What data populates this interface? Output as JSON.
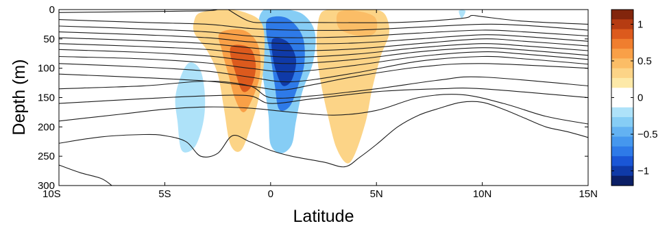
{
  "chart_data": {
    "type": "heatmap",
    "title": "",
    "xlabel": "Latitude",
    "ylabel": "Depth (m)",
    "xlim": [
      -10,
      15
    ],
    "ylim": [
      300,
      0
    ],
    "x_ticks": [
      {
        "value": -10,
        "label": "10S"
      },
      {
        "value": -5,
        "label": "5S"
      },
      {
        "value": 0,
        "label": "0"
      },
      {
        "value": 5,
        "label": "5N"
      },
      {
        "value": 10,
        "label": "10N"
      },
      {
        "value": 15,
        "label": "15N"
      }
    ],
    "y_ticks": [
      {
        "value": 0,
        "label": "0"
      },
      {
        "value": 50,
        "label": "50"
      },
      {
        "value": 100,
        "label": "100"
      },
      {
        "value": 150,
        "label": "150"
      },
      {
        "value": 200,
        "label": "200"
      },
      {
        "value": 250,
        "label": "250"
      },
      {
        "value": 300,
        "label": "300"
      }
    ],
    "colorbar": {
      "range": [
        -1.2,
        1.2
      ],
      "ticks": [
        {
          "value": 1,
          "label": "1"
        },
        {
          "value": 0.5,
          "label": "0.5"
        },
        {
          "value": 0,
          "label": "0"
        },
        {
          "value": -0.5,
          "label": "−0.5"
        },
        {
          "value": -1,
          "label": "−1"
        }
      ],
      "colors": [
        "#0b1f66",
        "#0f3aa8",
        "#1a56d6",
        "#2e7ae8",
        "#4597ee",
        "#63b2f2",
        "#86cdf5",
        "#aee2f9",
        "#ffffff",
        "#ffffff",
        "#fde9a8",
        "#fcd487",
        "#fbbd66",
        "#f9a047",
        "#f07e2e",
        "#dc5a1d",
        "#b63c12",
        "#82250c"
      ]
    },
    "anomaly_blobs": [
      {
        "name": "blob-north-warm",
        "value": 0.3,
        "points": [
          [
            3.0,
            0
          ],
          [
            3.6,
            0
          ],
          [
            4.8,
            0
          ],
          [
            5.4,
            8
          ],
          [
            5.6,
            40
          ],
          [
            5.2,
            80
          ],
          [
            4.8,
            135
          ],
          [
            4.5,
            190
          ],
          [
            4.0,
            245
          ],
          [
            3.6,
            262
          ],
          [
            3.1,
            235
          ],
          [
            2.7,
            180
          ],
          [
            2.4,
            130
          ],
          [
            2.2,
            80
          ],
          [
            2.2,
            35
          ],
          [
            2.4,
            5
          ]
        ]
      },
      {
        "name": "blob-north-warm-core",
        "value": 0.45,
        "points": [
          [
            3.2,
            5
          ],
          [
            4.0,
            2
          ],
          [
            4.9,
            12
          ],
          [
            5.0,
            35
          ],
          [
            4.6,
            45
          ],
          [
            3.8,
            42
          ],
          [
            3.2,
            30
          ]
        ]
      },
      {
        "name": "blob-equator-cool",
        "value": -0.4,
        "points": [
          [
            -0.3,
            0
          ],
          [
            0.8,
            0
          ],
          [
            1.6,
            10
          ],
          [
            2.1,
            40
          ],
          [
            2.0,
            90
          ],
          [
            1.5,
            140
          ],
          [
            1.2,
            190
          ],
          [
            1.0,
            230
          ],
          [
            0.5,
            245
          ],
          [
            0.0,
            230
          ],
          [
            -0.1,
            180
          ],
          [
            -0.3,
            130
          ],
          [
            -0.5,
            80
          ],
          [
            -0.6,
            30
          ]
        ]
      },
      {
        "name": "blob-equator-cool-mid",
        "value": -0.7,
        "points": [
          [
            -0.1,
            15
          ],
          [
            0.8,
            15
          ],
          [
            1.5,
            45
          ],
          [
            1.6,
            90
          ],
          [
            1.3,
            130
          ],
          [
            0.9,
            165
          ],
          [
            0.4,
            170
          ],
          [
            0.2,
            130
          ],
          [
            0.0,
            80
          ],
          [
            -0.2,
            40
          ]
        ]
      },
      {
        "name": "blob-equator-cool-core",
        "value": -1.0,
        "points": [
          [
            0.1,
            50
          ],
          [
            0.8,
            55
          ],
          [
            1.2,
            85
          ],
          [
            1.0,
            120
          ],
          [
            0.6,
            130
          ],
          [
            0.3,
            110
          ],
          [
            0.1,
            80
          ]
        ]
      },
      {
        "name": "blob-south-warm",
        "value": 0.3,
        "points": [
          [
            -3.3,
            5
          ],
          [
            -2.2,
            0
          ],
          [
            -1.2,
            5
          ],
          [
            -0.4,
            25
          ],
          [
            -0.3,
            80
          ],
          [
            -0.5,
            140
          ],
          [
            -0.9,
            195
          ],
          [
            -1.4,
            240
          ],
          [
            -1.9,
            230
          ],
          [
            -2.2,
            170
          ],
          [
            -2.5,
            110
          ],
          [
            -3.0,
            70
          ],
          [
            -3.6,
            40
          ],
          [
            -3.6,
            18
          ]
        ]
      },
      {
        "name": "blob-south-warm-mid",
        "value": 0.6,
        "points": [
          [
            -2.4,
            40
          ],
          [
            -1.3,
            35
          ],
          [
            -0.6,
            60
          ],
          [
            -0.5,
            110
          ],
          [
            -0.9,
            155
          ],
          [
            -1.3,
            175
          ],
          [
            -1.7,
            150
          ],
          [
            -2.0,
            110
          ],
          [
            -2.3,
            70
          ]
        ]
      },
      {
        "name": "blob-south-warm-core",
        "value": 0.85,
        "points": [
          [
            -1.9,
            65
          ],
          [
            -1.0,
            65
          ],
          [
            -0.7,
            95
          ],
          [
            -0.9,
            130
          ],
          [
            -1.3,
            140
          ],
          [
            -1.6,
            115
          ]
        ]
      },
      {
        "name": "blob-south-cool",
        "value": -0.25,
        "points": [
          [
            -4.2,
            110
          ],
          [
            -3.8,
            90
          ],
          [
            -3.3,
            105
          ],
          [
            -3.1,
            150
          ],
          [
            -3.2,
            195
          ],
          [
            -3.6,
            235
          ],
          [
            -4.2,
            240
          ],
          [
            -4.4,
            190
          ],
          [
            -4.5,
            150
          ]
        ]
      },
      {
        "name": "blob-north-cool-speck",
        "value": -0.2,
        "points": [
          [
            8.9,
            2
          ],
          [
            9.2,
            2
          ],
          [
            9.1,
            12
          ],
          [
            9.0,
            14
          ]
        ]
      }
    ],
    "contours": [
      {
        "name": "contour-1",
        "points": [
          [
            -10,
            5
          ],
          [
            -5,
            3
          ],
          [
            -3,
            2
          ],
          [
            -2.5,
            0
          ]
        ]
      },
      {
        "name": "contour-2",
        "points": [
          [
            -2,
            0
          ],
          [
            -1,
            20
          ],
          [
            0,
            22
          ],
          [
            2,
            22
          ],
          [
            6,
            22
          ],
          [
            9,
            15
          ],
          [
            9.5,
            10
          ],
          [
            10,
            12
          ],
          [
            12,
            20
          ],
          [
            15,
            25
          ]
        ]
      },
      {
        "name": "contour-3",
        "points": [
          [
            -10,
            17
          ],
          [
            -6,
            22
          ],
          [
            -3,
            25
          ],
          [
            -1,
            32
          ],
          [
            1,
            35
          ],
          [
            4,
            35
          ],
          [
            7,
            30
          ],
          [
            10,
            25
          ],
          [
            12,
            27
          ],
          [
            15,
            35
          ]
        ]
      },
      {
        "name": "contour-4",
        "points": [
          [
            -10,
            28
          ],
          [
            -6,
            33
          ],
          [
            -3,
            38
          ],
          [
            -1,
            45
          ],
          [
            1,
            48
          ],
          [
            4,
            46
          ],
          [
            7,
            40
          ],
          [
            10,
            35
          ],
          [
            12,
            38
          ],
          [
            15,
            45
          ]
        ]
      },
      {
        "name": "contour-5",
        "points": [
          [
            -10,
            38
          ],
          [
            -6,
            43
          ],
          [
            -3,
            48
          ],
          [
            -1,
            55
          ],
          [
            1,
            58
          ],
          [
            4,
            57
          ],
          [
            7,
            50
          ],
          [
            10,
            43
          ],
          [
            12,
            46
          ],
          [
            15,
            54
          ]
        ]
      },
      {
        "name": "contour-6",
        "points": [
          [
            -10,
            48
          ],
          [
            -6,
            53
          ],
          [
            -3,
            58
          ],
          [
            -1,
            65
          ],
          [
            1,
            70
          ],
          [
            4,
            67
          ],
          [
            7,
            58
          ],
          [
            10,
            50
          ],
          [
            12,
            54
          ],
          [
            15,
            62
          ]
        ]
      },
      {
        "name": "contour-7",
        "points": [
          [
            -10,
            58
          ],
          [
            -6,
            63
          ],
          [
            -3,
            68
          ],
          [
            -1,
            76
          ],
          [
            1,
            81
          ],
          [
            4,
            76
          ],
          [
            7,
            65
          ],
          [
            10,
            58
          ],
          [
            12,
            62
          ],
          [
            15,
            70
          ]
        ]
      },
      {
        "name": "contour-8",
        "points": [
          [
            -10,
            68
          ],
          [
            -6,
            73
          ],
          [
            -3,
            79
          ],
          [
            -1,
            87
          ],
          [
            1,
            92
          ],
          [
            4,
            85
          ],
          [
            7,
            72
          ],
          [
            10,
            65
          ],
          [
            12,
            69
          ],
          [
            15,
            78
          ]
        ]
      },
      {
        "name": "contour-9",
        "points": [
          [
            -10,
            80
          ],
          [
            -6,
            84
          ],
          [
            -3,
            91
          ],
          [
            -1,
            100
          ],
          [
            1,
            106
          ],
          [
            4,
            95
          ],
          [
            7,
            80
          ],
          [
            10,
            72
          ],
          [
            12,
            76
          ],
          [
            15,
            85
          ]
        ]
      },
      {
        "name": "contour-10",
        "points": [
          [
            -10,
            92
          ],
          [
            -6,
            98
          ],
          [
            -3,
            105
          ],
          [
            -1,
            115
          ],
          [
            1,
            123
          ],
          [
            4,
            108
          ],
          [
            7,
            88
          ],
          [
            10,
            80
          ],
          [
            12,
            84
          ],
          [
            15,
            93
          ]
        ]
      },
      {
        "name": "contour-11",
        "points": [
          [
            -10,
            110
          ],
          [
            -6,
            116
          ],
          [
            -3,
            122
          ],
          [
            -1,
            130
          ],
          [
            0.5,
            137
          ],
          [
            2,
            128
          ],
          [
            4,
            114
          ],
          [
            7,
            98
          ],
          [
            10,
            92
          ],
          [
            15,
            100
          ]
        ]
      },
      {
        "name": "contour-12",
        "points": [
          [
            -10,
            135
          ],
          [
            -6,
            130
          ],
          [
            -3,
            122
          ],
          [
            -1,
            130
          ],
          [
            0,
            150
          ],
          [
            2,
            147
          ],
          [
            5,
            135
          ],
          [
            8,
            120
          ],
          [
            10,
            115
          ],
          [
            15,
            130
          ]
        ]
      },
      {
        "name": "contour-13",
        "points": [
          [
            -10,
            160
          ],
          [
            -6,
            152
          ],
          [
            -3,
            147
          ],
          [
            -1,
            147
          ],
          [
            0,
            160
          ],
          [
            2,
            152
          ],
          [
            5,
            140
          ],
          [
            8,
            135
          ],
          [
            10,
            135
          ],
          [
            15,
            150
          ]
        ]
      },
      {
        "name": "contour-14",
        "points": [
          [
            -10,
            190
          ],
          [
            -7,
            178
          ],
          [
            -5,
            170
          ],
          [
            -3,
            166
          ],
          [
            -1,
            168
          ],
          [
            1,
            175
          ],
          [
            3,
            180
          ],
          [
            5,
            172
          ],
          [
            7,
            150
          ],
          [
            9,
            145
          ],
          [
            11,
            160
          ],
          [
            13,
            182
          ],
          [
            15,
            195
          ]
        ]
      },
      {
        "name": "contour-15",
        "points": [
          [
            -10,
            228
          ],
          [
            -8,
            217
          ],
          [
            -6,
            213
          ],
          [
            -5,
            215
          ],
          [
            -4,
            225
          ],
          [
            -3.3,
            250
          ],
          [
            -2.5,
            245
          ],
          [
            -1.8,
            215
          ],
          [
            -1,
            225
          ],
          [
            0,
            240
          ],
          [
            1,
            250
          ],
          [
            2.5,
            260
          ],
          [
            3.5,
            268
          ],
          [
            4.2,
            252
          ],
          [
            5,
            230
          ],
          [
            6,
            200
          ],
          [
            7,
            180
          ],
          [
            8,
            168
          ],
          [
            9,
            158
          ],
          [
            10,
            158
          ],
          [
            11,
            170
          ],
          [
            12,
            185
          ],
          [
            13,
            200
          ],
          [
            14,
            208
          ],
          [
            15,
            218
          ]
        ]
      },
      {
        "name": "contour-16",
        "points": [
          [
            -10,
            265
          ],
          [
            -9,
            278
          ],
          [
            -8,
            288
          ],
          [
            -7.5,
            300
          ]
        ]
      }
    ]
  }
}
